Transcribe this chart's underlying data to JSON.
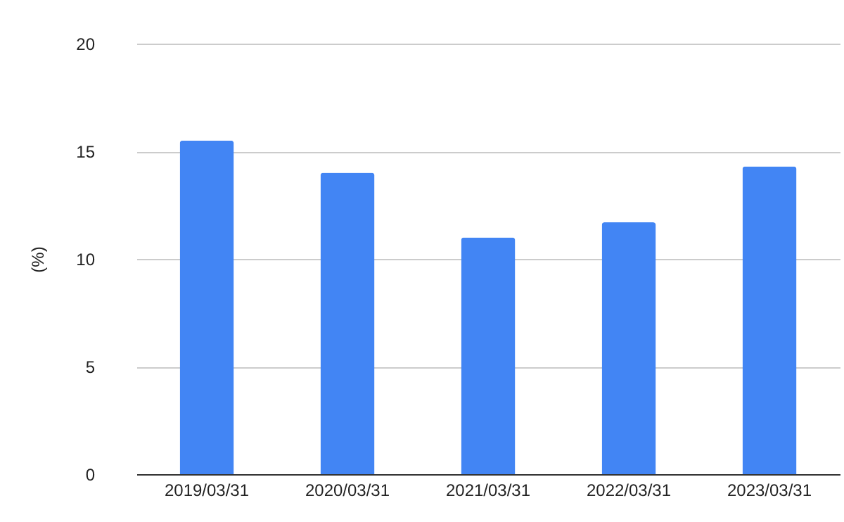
{
  "chart_data": {
    "type": "bar",
    "ylabel": "(%)",
    "categories": [
      "2019/03/31",
      "2020/03/31",
      "2021/03/31",
      "2022/03/31",
      "2023/03/31"
    ],
    "values": [
      15.5,
      14.0,
      11.0,
      11.7,
      14.3
    ],
    "color": "#4285f4",
    "ylim": [
      0,
      20
    ],
    "yticks": [
      0,
      5,
      10,
      15,
      20
    ],
    "grid": "y"
  }
}
